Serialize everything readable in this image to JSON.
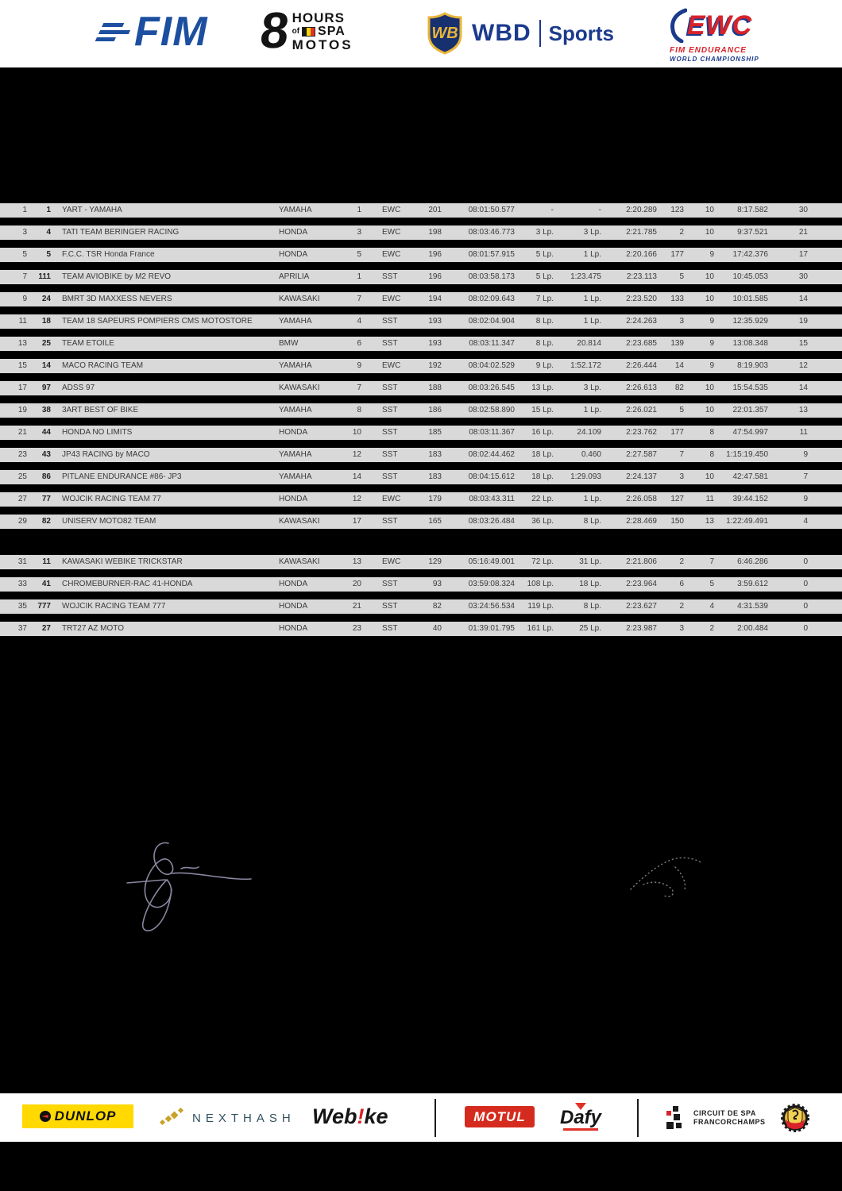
{
  "header_logos": {
    "fim": {
      "text": "FIM",
      "color": "#1d4fa0"
    },
    "spa8": {
      "big": "8",
      "line1": "HOURS",
      "of": "of",
      "spa": "SPA",
      "line3": "MOTOS"
    },
    "wbd": {
      "shield": "WB",
      "brand": "WBD",
      "division": "Sports",
      "color": "#1b3a8c"
    },
    "ewc": {
      "brand": "EWC",
      "line1": "FIM ENDURANCE",
      "line2": "WORLD CHAMPIONSHIP",
      "red": "#d8232a",
      "blue": "#1b3a8c"
    }
  },
  "results_table": {
    "row_background": "#d9d9d9",
    "text_color": "#3a3a3a",
    "rows": [
      {
        "pos": "1",
        "num": "1",
        "team": "YART - YAMAHA",
        "make": "YAMAHA",
        "class_pos": "1",
        "cls": "EWC",
        "laps": "201",
        "total": "08:01:50.577",
        "gap_first": "-",
        "gap_prev": "-",
        "best": "2:20.289",
        "best_on": "123",
        "pits": "10",
        "pit_time": "8:17.582",
        "pts": "30"
      },
      {
        "pos": "3",
        "num": "4",
        "team": "TATI TEAM BERINGER RACING",
        "make": "HONDA",
        "class_pos": "3",
        "cls": "EWC",
        "laps": "198",
        "total": "08:03:46.773",
        "gap_first": "3 Lp.",
        "gap_prev": "3 Lp.",
        "best": "2:21.785",
        "best_on": "2",
        "pits": "10",
        "pit_time": "9:37.521",
        "pts": "21"
      },
      {
        "pos": "5",
        "num": "5",
        "team": "F.C.C. TSR Honda France",
        "make": "HONDA",
        "class_pos": "5",
        "cls": "EWC",
        "laps": "196",
        "total": "08:01:57.915",
        "gap_first": "5 Lp.",
        "gap_prev": "1 Lp.",
        "best": "2:20.166",
        "best_on": "177",
        "pits": "9",
        "pit_time": "17:42.376",
        "pts": "17"
      },
      {
        "pos": "7",
        "num": "111",
        "team": "TEAM AVIOBIKE by M2 REVO",
        "make": "APRILIA",
        "class_pos": "1",
        "cls": "SST",
        "laps": "196",
        "total": "08:03:58.173",
        "gap_first": "5 Lp.",
        "gap_prev": "1:23.475",
        "best": "2:23.113",
        "best_on": "5",
        "pits": "10",
        "pit_time": "10:45.053",
        "pts": "30"
      },
      {
        "pos": "9",
        "num": "24",
        "team": "BMRT 3D MAXXESS NEVERS",
        "make": "KAWASAKI",
        "class_pos": "7",
        "cls": "EWC",
        "laps": "194",
        "total": "08:02:09.643",
        "gap_first": "7 Lp.",
        "gap_prev": "1 Lp.",
        "best": "2:23.520",
        "best_on": "133",
        "pits": "10",
        "pit_time": "10:01.585",
        "pts": "14"
      },
      {
        "pos": "11",
        "num": "18",
        "team": "TEAM 18 SAPEURS POMPIERS CMS MOTOSTORE",
        "make": "YAMAHA",
        "class_pos": "4",
        "cls": "SST",
        "laps": "193",
        "total": "08:02:04.904",
        "gap_first": "8 Lp.",
        "gap_prev": "1 Lp.",
        "best": "2:24.263",
        "best_on": "3",
        "pits": "9",
        "pit_time": "12:35.929",
        "pts": "19"
      },
      {
        "pos": "13",
        "num": "25",
        "team": "TEAM ÉTOILE",
        "make": "BMW",
        "class_pos": "6",
        "cls": "SST",
        "laps": "193",
        "total": "08:03:11.347",
        "gap_first": "8 Lp.",
        "gap_prev": "20.814",
        "best": "2:23.685",
        "best_on": "139",
        "pits": "9",
        "pit_time": "13:08.348",
        "pts": "15"
      },
      {
        "pos": "15",
        "num": "14",
        "team": "MACO RACING TEAM",
        "make": "YAMAHA",
        "class_pos": "9",
        "cls": "EWC",
        "laps": "192",
        "total": "08:04:02.529",
        "gap_first": "9 Lp.",
        "gap_prev": "1:52.172",
        "best": "2:26.444",
        "best_on": "14",
        "pits": "9",
        "pit_time": "8:19.903",
        "pts": "12"
      },
      {
        "pos": "17",
        "num": "97",
        "team": "ADSS 97",
        "make": "KAWASAKI",
        "class_pos": "7",
        "cls": "SST",
        "laps": "188",
        "total": "08:03:26.545",
        "gap_first": "13 Lp.",
        "gap_prev": "3 Lp.",
        "best": "2:26.613",
        "best_on": "82",
        "pits": "10",
        "pit_time": "15:54.535",
        "pts": "14"
      },
      {
        "pos": "19",
        "num": "38",
        "team": "3ART BEST OF BIKE",
        "make": "YAMAHA",
        "class_pos": "8",
        "cls": "SST",
        "laps": "186",
        "total": "08:02:58.890",
        "gap_first": "15 Lp.",
        "gap_prev": "1 Lp.",
        "best": "2:26.021",
        "best_on": "5",
        "pits": "10",
        "pit_time": "22:01.357",
        "pts": "13"
      },
      {
        "pos": "21",
        "num": "44",
        "team": "HONDA NO LIMITS",
        "make": "HONDA",
        "class_pos": "10",
        "cls": "SST",
        "laps": "185",
        "total": "08:03:11.367",
        "gap_first": "16 Lp.",
        "gap_prev": "24.109",
        "best": "2:23.762",
        "best_on": "177",
        "pits": "8",
        "pit_time": "47:54.997",
        "pts": "11"
      },
      {
        "pos": "23",
        "num": "43",
        "team": "JP43 RACING by MACO",
        "make": "YAMAHA",
        "class_pos": "12",
        "cls": "SST",
        "laps": "183",
        "total": "08:02:44.462",
        "gap_first": "18 Lp.",
        "gap_prev": "0.460",
        "best": "2:27.587",
        "best_on": "7",
        "pits": "8",
        "pit_time": "1:15:19.450",
        "pts": "9"
      },
      {
        "pos": "25",
        "num": "86",
        "team": "PITLANE ENDURANCE #86- JP3",
        "make": "YAMAHA",
        "class_pos": "14",
        "cls": "SST",
        "laps": "183",
        "total": "08:04:15.612",
        "gap_first": "18 Lp.",
        "gap_prev": "1:29.093",
        "best": "2:24.137",
        "best_on": "3",
        "pits": "10",
        "pit_time": "42:47.581",
        "pts": "7"
      },
      {
        "pos": "27",
        "num": "77",
        "team": "WÓJCIK RACING TEAM 77",
        "make": "HONDA",
        "class_pos": "12",
        "cls": "EWC",
        "laps": "179",
        "total": "08:03:43.311",
        "gap_first": "22 Lp.",
        "gap_prev": "1 Lp.",
        "best": "2:26.058",
        "best_on": "127",
        "pits": "11",
        "pit_time": "39:44.152",
        "pts": "9"
      },
      {
        "pos": "29",
        "num": "82",
        "team": "UNISERV MOTO82 TEAM",
        "make": "KAWASAKI",
        "class_pos": "17",
        "cls": "SST",
        "laps": "165",
        "total": "08:03:26.484",
        "gap_first": "36 Lp.",
        "gap_prev": "8 Lp.",
        "best": "2:28.469",
        "best_on": "150",
        "pits": "13",
        "pit_time": "1:22:49.491",
        "pts": "4"
      },
      {
        "gap_before": true,
        "pos": "31",
        "num": "11",
        "team": "KAWASAKI WEBIKE TRICKSTAR",
        "make": "KAWASAKI",
        "class_pos": "13",
        "cls": "EWC",
        "laps": "129",
        "total": "05:16:49.001",
        "gap_first": "72 Lp.",
        "gap_prev": "31 Lp.",
        "best": "2:21.806",
        "best_on": "2",
        "pits": "7",
        "pit_time": "6:46.286",
        "pts": "0"
      },
      {
        "pos": "33",
        "num": "41",
        "team": "CHROMEBURNER-RAC 41-HONDA",
        "make": "HONDA",
        "class_pos": "20",
        "cls": "SST",
        "laps": "93",
        "total": "03:59:08.324",
        "gap_first": "108 Lp.",
        "gap_prev": "18 Lp.",
        "best": "2:23.964",
        "best_on": "6",
        "pits": "5",
        "pit_time": "3:59.612",
        "pts": "0"
      },
      {
        "pos": "35",
        "num": "777",
        "team": "WÓJCIK RACING TEAM 777",
        "make": "HONDA",
        "class_pos": "21",
        "cls": "SST",
        "laps": "82",
        "total": "03:24:56.534",
        "gap_first": "119 Lp.",
        "gap_prev": "8 Lp.",
        "best": "2:23.627",
        "best_on": "2",
        "pits": "4",
        "pit_time": "4:31.539",
        "pts": "0"
      },
      {
        "pos": "37",
        "num": "27",
        "team": "TRT27 AZ MOTO",
        "make": "HONDA",
        "class_pos": "23",
        "cls": "SST",
        "laps": "40",
        "total": "01:39:01.795",
        "gap_first": "161 Lp.",
        "gap_prev": "25 Lp.",
        "best": "2:23.987",
        "best_on": "3",
        "pits": "2",
        "pit_time": "2:00.484",
        "pts": "0"
      }
    ]
  },
  "sponsors": {
    "dunlop": {
      "label": "DUNLOP",
      "background": "#ffd900"
    },
    "nexthash": {
      "label": "NEXTHASH",
      "color": "#33505e",
      "accent": "#c9a227"
    },
    "webike": {
      "pre": "Web",
      "bang": "!",
      "post": "ke"
    },
    "motul": {
      "label": "MOTUL",
      "background": "#d52b1e"
    },
    "dafy": {
      "label": "Dafy",
      "accent": "#e03127"
    },
    "spa_circuit": {
      "line1": "CIRCUIT DE SPA",
      "line2": "FRANCORCHAMPS"
    }
  }
}
